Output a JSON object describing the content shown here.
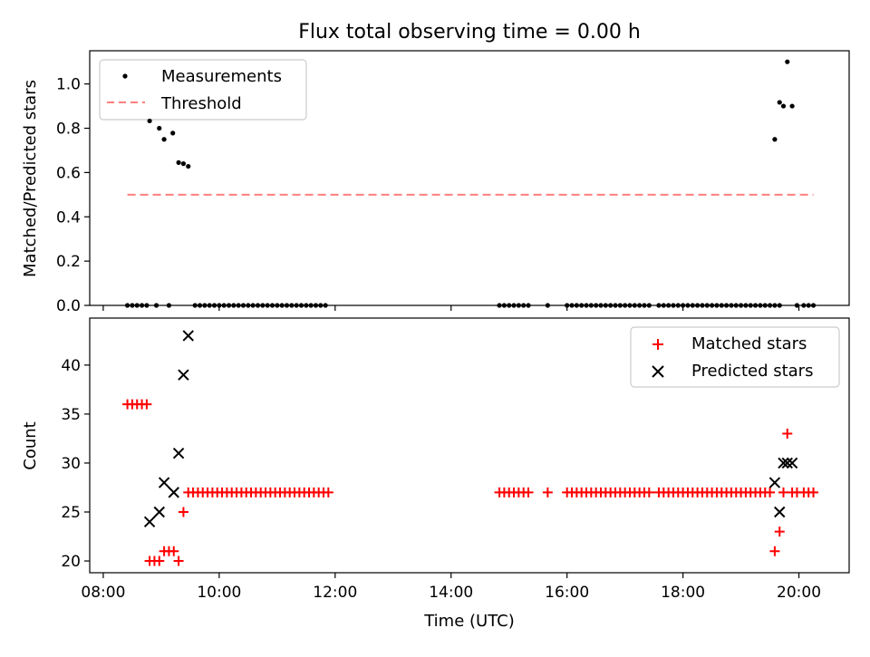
{
  "chart_data": [
    {
      "type": "scatter",
      "title": "Flux total observing time = 0.00 h",
      "xlabel": "",
      "ylabel": "Matched/Predicted stars",
      "ylim": [
        0,
        1.15
      ],
      "yticks": [
        "0.0",
        "0.2",
        "0.4",
        "0.6",
        "0.8",
        "1.0"
      ],
      "legend_position": "upper-left",
      "series": [
        {
          "name": "Measurements",
          "marker": "dot",
          "color": "#000000",
          "points": [
            [
              "08:25",
              0
            ],
            [
              "08:30",
              0
            ],
            [
              "08:35",
              0
            ],
            [
              "08:40",
              0
            ],
            [
              "08:45",
              0
            ],
            [
              "08:48",
              0.833
            ],
            [
              "08:55",
              0
            ],
            [
              "08:58",
              0.8
            ],
            [
              "09:03",
              0.75
            ],
            [
              "09:08",
              0
            ],
            [
              "09:12",
              0.778
            ],
            [
              "09:18",
              0.645
            ],
            [
              "09:23",
              0.64
            ],
            [
              "09:28",
              0.628
            ],
            [
              "09:35",
              0
            ],
            [
              "09:40",
              0
            ],
            [
              "09:45",
              0
            ],
            [
              "09:50",
              0
            ],
            [
              "09:55",
              0
            ],
            [
              "10:00",
              0
            ],
            [
              "10:05",
              0
            ],
            [
              "10:10",
              0
            ],
            [
              "10:15",
              0
            ],
            [
              "10:20",
              0
            ],
            [
              "10:25",
              0
            ],
            [
              "10:30",
              0
            ],
            [
              "10:35",
              0
            ],
            [
              "10:40",
              0
            ],
            [
              "10:45",
              0
            ],
            [
              "10:50",
              0
            ],
            [
              "10:55",
              0
            ],
            [
              "11:00",
              0
            ],
            [
              "11:05",
              0
            ],
            [
              "11:10",
              0
            ],
            [
              "11:15",
              0
            ],
            [
              "11:20",
              0
            ],
            [
              "11:25",
              0
            ],
            [
              "11:30",
              0
            ],
            [
              "11:35",
              0
            ],
            [
              "11:40",
              0
            ],
            [
              "11:45",
              0
            ],
            [
              "11:50",
              0
            ],
            [
              "14:50",
              0
            ],
            [
              "14:55",
              0
            ],
            [
              "15:00",
              0
            ],
            [
              "15:05",
              0
            ],
            [
              "15:10",
              0
            ],
            [
              "15:15",
              0
            ],
            [
              "15:20",
              0
            ],
            [
              "15:40",
              0
            ],
            [
              "16:00",
              0
            ],
            [
              "16:05",
              0
            ],
            [
              "16:10",
              0
            ],
            [
              "16:15",
              0
            ],
            [
              "16:20",
              0
            ],
            [
              "16:25",
              0
            ],
            [
              "16:30",
              0
            ],
            [
              "16:35",
              0
            ],
            [
              "16:40",
              0
            ],
            [
              "16:45",
              0
            ],
            [
              "16:50",
              0
            ],
            [
              "16:55",
              0
            ],
            [
              "17:00",
              0
            ],
            [
              "17:05",
              0
            ],
            [
              "17:10",
              0
            ],
            [
              "17:15",
              0
            ],
            [
              "17:20",
              0
            ],
            [
              "17:25",
              0
            ],
            [
              "17:35",
              0
            ],
            [
              "17:40",
              0
            ],
            [
              "17:45",
              0
            ],
            [
              "17:50",
              0
            ],
            [
              "17:55",
              0
            ],
            [
              "18:00",
              0
            ],
            [
              "18:05",
              0
            ],
            [
              "18:10",
              0
            ],
            [
              "18:15",
              0
            ],
            [
              "18:20",
              0
            ],
            [
              "18:25",
              0
            ],
            [
              "18:30",
              0
            ],
            [
              "18:35",
              0
            ],
            [
              "18:40",
              0
            ],
            [
              "18:45",
              0
            ],
            [
              "18:50",
              0
            ],
            [
              "18:55",
              0
            ],
            [
              "19:00",
              0
            ],
            [
              "19:05",
              0
            ],
            [
              "19:10",
              0
            ],
            [
              "19:15",
              0
            ],
            [
              "19:20",
              0
            ],
            [
              "19:25",
              0
            ],
            [
              "19:30",
              0
            ],
            [
              "19:35",
              0
            ],
            [
              "19:40",
              0
            ],
            [
              "19:35",
              0.75
            ],
            [
              "19:40",
              0.917
            ],
            [
              "19:44",
              0.9
            ],
            [
              "19:48",
              1.1
            ],
            [
              "19:53",
              0.9
            ],
            [
              "19:58",
              0
            ],
            [
              "20:05",
              0
            ],
            [
              "20:10",
              0
            ],
            [
              "20:15",
              0
            ]
          ]
        },
        {
          "name": "Threshold",
          "line_style": "dashed",
          "color": "#ff7f7f",
          "points": [
            [
              "08:25",
              0.5
            ],
            [
              "20:15",
              0.5
            ]
          ]
        }
      ]
    },
    {
      "type": "scatter",
      "title": "",
      "xlabel": "Time (UTC)",
      "ylabel": "Count",
      "ylim": [
        18.8,
        44.8
      ],
      "yticks": [
        "20",
        "25",
        "30",
        "35",
        "40"
      ],
      "xlim": [
        "07:46",
        "20:52"
      ],
      "xticks": [
        "08:00",
        "10:00",
        "12:00",
        "14:00",
        "16:00",
        "18:00",
        "20:00"
      ],
      "legend_position": "upper-right",
      "series": [
        {
          "name": "Matched stars",
          "marker": "plus",
          "color": "#ff0000",
          "points": [
            [
              "08:25",
              36
            ],
            [
              "08:30",
              36
            ],
            [
              "08:35",
              36
            ],
            [
              "08:40",
              36
            ],
            [
              "08:45",
              36
            ],
            [
              "08:48",
              20
            ],
            [
              "08:53",
              20
            ],
            [
              "08:58",
              20
            ],
            [
              "09:03",
              21
            ],
            [
              "09:08",
              21
            ],
            [
              "09:13",
              21
            ],
            [
              "09:18",
              20
            ],
            [
              "09:23",
              25
            ],
            [
              "09:28",
              27
            ],
            [
              "09:33",
              27
            ],
            [
              "09:38",
              27
            ],
            [
              "09:43",
              27
            ],
            [
              "09:48",
              27
            ],
            [
              "09:53",
              27
            ],
            [
              "09:58",
              27
            ],
            [
              "10:03",
              27
            ],
            [
              "10:08",
              27
            ],
            [
              "10:13",
              27
            ],
            [
              "10:18",
              27
            ],
            [
              "10:23",
              27
            ],
            [
              "10:28",
              27
            ],
            [
              "10:33",
              27
            ],
            [
              "10:38",
              27
            ],
            [
              "10:43",
              27
            ],
            [
              "10:48",
              27
            ],
            [
              "10:53",
              27
            ],
            [
              "10:58",
              27
            ],
            [
              "11:03",
              27
            ],
            [
              "11:08",
              27
            ],
            [
              "11:13",
              27
            ],
            [
              "11:18",
              27
            ],
            [
              "11:23",
              27
            ],
            [
              "11:28",
              27
            ],
            [
              "11:33",
              27
            ],
            [
              "11:38",
              27
            ],
            [
              "11:43",
              27
            ],
            [
              "11:48",
              27
            ],
            [
              "11:53",
              27
            ],
            [
              "14:50",
              27
            ],
            [
              "14:55",
              27
            ],
            [
              "15:00",
              27
            ],
            [
              "15:05",
              27
            ],
            [
              "15:10",
              27
            ],
            [
              "15:15",
              27
            ],
            [
              "15:20",
              27
            ],
            [
              "15:40",
              27
            ],
            [
              "16:00",
              27
            ],
            [
              "16:05",
              27
            ],
            [
              "16:10",
              27
            ],
            [
              "16:15",
              27
            ],
            [
              "16:20",
              27
            ],
            [
              "16:25",
              27
            ],
            [
              "16:30",
              27
            ],
            [
              "16:35",
              27
            ],
            [
              "16:40",
              27
            ],
            [
              "16:45",
              27
            ],
            [
              "16:50",
              27
            ],
            [
              "16:55",
              27
            ],
            [
              "17:00",
              27
            ],
            [
              "17:05",
              27
            ],
            [
              "17:10",
              27
            ],
            [
              "17:15",
              27
            ],
            [
              "17:20",
              27
            ],
            [
              "17:25",
              27
            ],
            [
              "17:35",
              27
            ],
            [
              "17:40",
              27
            ],
            [
              "17:45",
              27
            ],
            [
              "17:50",
              27
            ],
            [
              "17:55",
              27
            ],
            [
              "18:00",
              27
            ],
            [
              "18:05",
              27
            ],
            [
              "18:10",
              27
            ],
            [
              "18:15",
              27
            ],
            [
              "18:20",
              27
            ],
            [
              "18:25",
              27
            ],
            [
              "18:30",
              27
            ],
            [
              "18:35",
              27
            ],
            [
              "18:40",
              27
            ],
            [
              "18:45",
              27
            ],
            [
              "18:50",
              27
            ],
            [
              "18:55",
              27
            ],
            [
              "19:00",
              27
            ],
            [
              "19:05",
              27
            ],
            [
              "19:10",
              27
            ],
            [
              "19:15",
              27
            ],
            [
              "19:20",
              27
            ],
            [
              "19:25",
              27
            ],
            [
              "19:30",
              27
            ],
            [
              "19:35",
              21
            ],
            [
              "19:40",
              23
            ],
            [
              "19:44",
              27
            ],
            [
              "19:48",
              33
            ],
            [
              "19:53",
              27
            ],
            [
              "19:58",
              27
            ],
            [
              "20:05",
              27
            ],
            [
              "20:10",
              27
            ],
            [
              "20:15",
              27
            ]
          ]
        },
        {
          "name": "Predicted stars",
          "marker": "x",
          "color": "#000000",
          "points": [
            [
              "08:48",
              24
            ],
            [
              "08:58",
              25
            ],
            [
              "09:03",
              28
            ],
            [
              "09:13",
              27
            ],
            [
              "09:18",
              31
            ],
            [
              "09:23",
              39
            ],
            [
              "09:28",
              43
            ],
            [
              "19:35",
              28
            ],
            [
              "19:40",
              25
            ],
            [
              "19:44",
              30
            ],
            [
              "19:48",
              30
            ],
            [
              "19:53",
              30
            ]
          ]
        }
      ]
    }
  ]
}
